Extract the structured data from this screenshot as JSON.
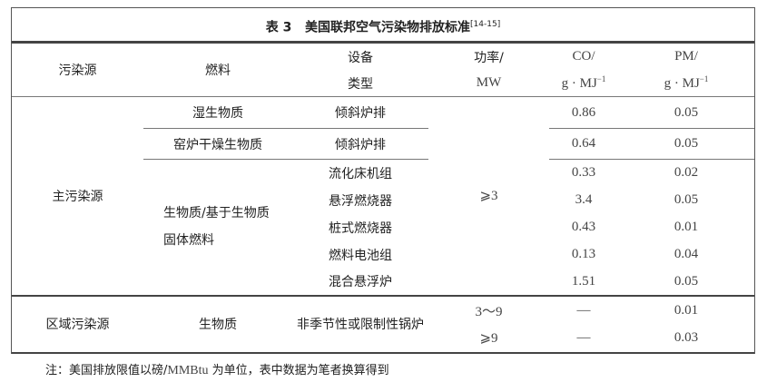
{
  "title": {
    "label": "表 3",
    "text": "美国联邦空气污染物排放标准",
    "ref": "[14-15]"
  },
  "headers": {
    "source": "污染源",
    "fuel": "燃料",
    "device_1": "设备",
    "device_2": "类型",
    "power_1": "功率/",
    "power_2": "MW",
    "co_1": "CO/",
    "co_2": "g · MJ",
    "co_exp": "−1",
    "pm_1": "PM/",
    "pm_2": "g · MJ",
    "pm_exp": "−1"
  },
  "main": {
    "source": "主污染源",
    "power": "⩾3",
    "rows": [
      {
        "fuel": "湿生物质",
        "device": "倾斜炉排",
        "co": "0.86",
        "pm": "0.05"
      },
      {
        "fuel": "窑炉干燥生物质",
        "device": "倾斜炉排",
        "co": "0.64",
        "pm": "0.05"
      },
      {
        "fuel": "生物质/基于生物质固体燃料",
        "device": "流化床机组",
        "co": "0.33",
        "pm": "0.02"
      },
      {
        "device": "悬浮燃烧器",
        "co": "3.4",
        "pm": "0.05"
      },
      {
        "device": "桩式燃烧器",
        "co": "0.43",
        "pm": "0.01"
      },
      {
        "device": "燃料电池组",
        "co": "0.13",
        "pm": "0.04"
      },
      {
        "device": "混合悬浮炉",
        "co": "1.51",
        "pm": "0.05"
      }
    ]
  },
  "regional": {
    "source": "区域污染源",
    "fuel": "生物质",
    "device": "非季节性或限制性锅炉",
    "rows": [
      {
        "power": "3～9",
        "co": "—",
        "pm": "0.01"
      },
      {
        "power": "⩾9",
        "co": "—",
        "pm": "0.03"
      }
    ]
  },
  "note": {
    "prefix": "注：美国排放限值以磅/",
    "unit": "MMBtu",
    "suffix": " 为单位，表中数据为笔者换算得到"
  }
}
